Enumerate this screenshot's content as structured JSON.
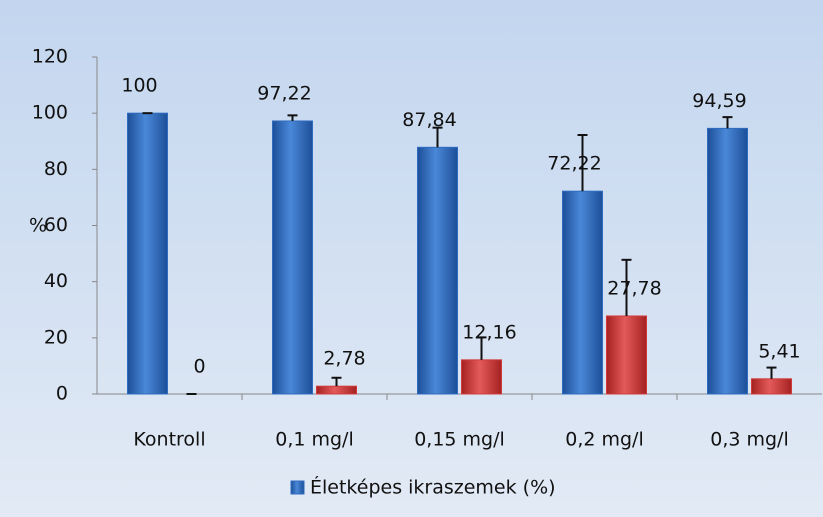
{
  "chart_data": {
    "type": "bar",
    "categories": [
      "Kontroll",
      "0,1 mg/l",
      "0,15 mg/l",
      "0,2 mg/l",
      "0,3 mg/l"
    ],
    "series": [
      {
        "name": "Életképes ikraszemek (%)",
        "color": "#2f6cc0",
        "values": [
          100,
          97.22,
          87.84,
          72.22,
          94.59
        ],
        "value_labels": [
          "100",
          "97,22",
          "87,84",
          "72,22",
          "94,59"
        ],
        "errors": [
          0,
          2,
          7,
          20,
          4
        ]
      },
      {
        "color": "#d23a3a",
        "values": [
          0,
          2.78,
          12.16,
          27.78,
          5.41
        ],
        "value_labels": [
          "0",
          "2,78",
          "12,16",
          "27,78",
          "5,41"
        ],
        "errors": [
          0,
          3,
          8,
          20,
          4
        ]
      }
    ],
    "ylabel": "%",
    "ylim": [
      0,
      120
    ],
    "yticks": [
      0,
      20,
      40,
      60,
      80,
      100,
      120
    ],
    "legend": "bottom"
  }
}
